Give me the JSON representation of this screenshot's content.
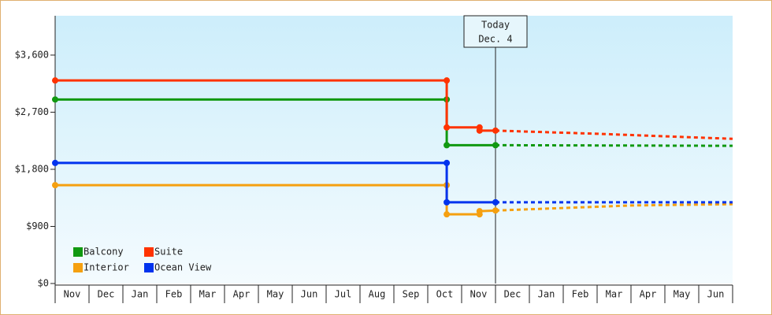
{
  "chart_data": {
    "type": "line",
    "categories": [
      "Nov",
      "Dec",
      "Jan",
      "Feb",
      "Mar",
      "Apr",
      "May",
      "Jun",
      "Jul",
      "Aug",
      "Sep",
      "Oct",
      "Nov",
      "Dec",
      "Jan",
      "Feb",
      "Mar",
      "Apr",
      "May",
      "Jun"
    ],
    "xlim": [
      0,
      20
    ],
    "ylim": [
      0,
      4220
    ],
    "yticks": [
      {
        "value": 0,
        "label": "$0"
      },
      {
        "value": 900,
        "label": "$900"
      },
      {
        "value": 1800,
        "label": "$1,800"
      },
      {
        "value": 2700,
        "label": "$2,700"
      },
      {
        "value": 3600,
        "label": "$3,600"
      }
    ],
    "today": {
      "x": 13,
      "label": "Today",
      "date": "Dec. 4"
    },
    "series": [
      {
        "name": "Balcony",
        "color": "#119911",
        "x": [
          0,
          11.56,
          11.56,
          13
        ],
        "values": [
          2900,
          2900,
          2180,
          2180
        ],
        "projected_x": [
          13,
          20
        ],
        "projected_values": [
          2180,
          2170
        ]
      },
      {
        "name": "Suite",
        "color": "#ff3300",
        "x": [
          0,
          11.56,
          11.56,
          12.53,
          12.53,
          13
        ],
        "values": [
          3200,
          3200,
          2460,
          2460,
          2410,
          2410
        ],
        "projected_x": [
          13,
          16,
          20
        ],
        "projected_values": [
          2410,
          2360,
          2280
        ]
      },
      {
        "name": "Interior",
        "color": "#f5a010",
        "x": [
          0,
          11.56,
          11.56,
          12.53,
          12.53,
          13
        ],
        "values": [
          1550,
          1550,
          1090,
          1090,
          1140,
          1150
        ],
        "projected_x": [
          13,
          15,
          17,
          20
        ],
        "projected_values": [
          1150,
          1190,
          1230,
          1250
        ]
      },
      {
        "name": "Ocean View",
        "color": "#0033ee",
        "x": [
          0,
          11.56,
          11.56,
          13
        ],
        "values": [
          1900,
          1900,
          1280,
          1280
        ],
        "projected_x": [
          13,
          20
        ],
        "projected_values": [
          1280,
          1280
        ]
      }
    ]
  }
}
